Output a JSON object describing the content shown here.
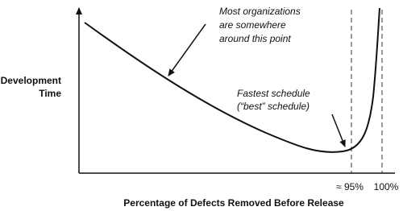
{
  "y_axis": {
    "label": [
      "Development",
      "Time"
    ]
  },
  "x_axis": {
    "label": "Percentage of Defects Removed Before Release",
    "ticks": [
      "≈ 95%",
      "100%"
    ]
  },
  "annotations": [
    {
      "lines": [
        "Most organizations",
        "are somewhere",
        "around this point"
      ]
    },
    {
      "lines": [
        "Fastest schedule",
        "(“best” schedule)"
      ]
    }
  ]
}
